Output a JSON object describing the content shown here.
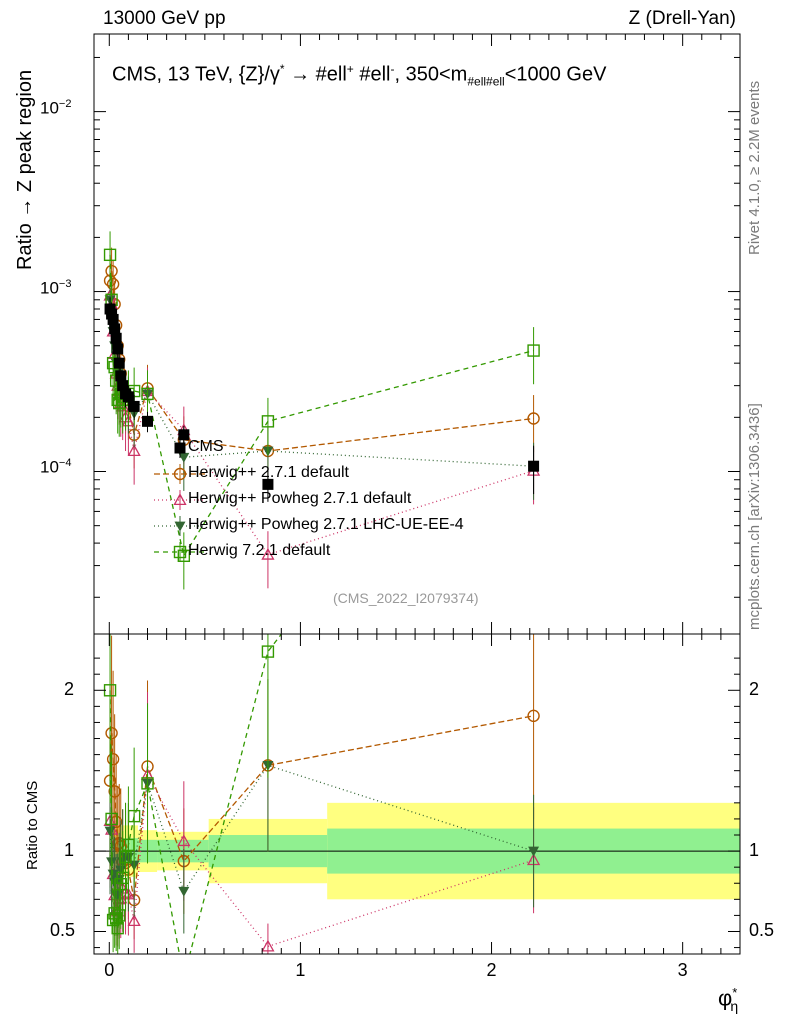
{
  "header": {
    "energy": "13000 GeV pp",
    "process": "Z (Drell-Yan)",
    "title_main": "CMS, 13 TeV, {Z}/γ",
    "title_sup": "*",
    "title_arrow": " →  #ell",
    "title_plus": "+",
    "title_mid": " #ell",
    "title_minus": "-",
    "title_mass": ", 350<m",
    "title_mass_sub": "#ell#ell",
    "title_tail": "<1000 GeV"
  },
  "side": {
    "rivet": "Rivet 4.1.0, ≥ 2.2M events",
    "mcplots": "mcplots.cern.ch [arXiv:1306.3436]"
  },
  "watermark": "(CMS_2022_I2079374)",
  "axes": {
    "ylabel_main": "Ratio → Z peak region",
    "ylabel_ratio": "Ratio to CMS",
    "xlabel": "φ",
    "xlabel_sup": "*",
    "xlabel_sub": "η",
    "main_ticks": [
      {
        "value": 0.0001,
        "label": "10",
        "exp": "−4"
      },
      {
        "value": 0.001,
        "label": "10",
        "exp": "−3"
      },
      {
        "value": 0.01,
        "label": "10",
        "exp": "−2"
      }
    ],
    "ratio_ticks": [
      {
        "value": 0.5,
        "label": "0.5"
      },
      {
        "value": 1,
        "label": "1"
      },
      {
        "value": 2,
        "label": "2"
      }
    ],
    "x_ticks": [
      {
        "value": 0,
        "label": "0"
      },
      {
        "value": 1,
        "label": "1"
      },
      {
        "value": 2,
        "label": "2"
      },
      {
        "value": 3,
        "label": "3"
      }
    ]
  },
  "chart_data": {
    "type": "scatter",
    "x_scale": "linear",
    "y_scale": "log",
    "xlim": [
      -0.08,
      3.3
    ],
    "ylim": [
      1.25e-05,
      0.027
    ],
    "ratio_ylim": [
      0.36,
      2.35
    ],
    "x": [
      0.004,
      0.012,
      0.02,
      0.028,
      0.036,
      0.044,
      0.052,
      0.06,
      0.07,
      0.085,
      0.1,
      0.13,
      0.2,
      0.39,
      0.83,
      2.22
    ],
    "bin_edges": [
      0,
      0.008,
      0.016,
      0.024,
      0.032,
      0.04,
      0.048,
      0.056,
      0.064,
      0.077,
      0.093,
      0.112,
      0.15,
      0.25,
      0.52,
      1.14,
      3.3
    ],
    "cms_stat_rel": [
      0.08,
      0.08,
      0.08,
      0.08,
      0.08,
      0.08,
      0.08,
      0.08,
      0.08,
      0.08,
      0.08,
      0.08,
      0.07,
      0.07,
      0.1,
      0.14
    ],
    "cms_tot_rel": [
      0.16,
      0.16,
      0.16,
      0.16,
      0.16,
      0.16,
      0.16,
      0.16,
      0.16,
      0.16,
      0.16,
      0.16,
      0.13,
      0.12,
      0.2,
      0.3
    ],
    "series": [
      {
        "name": "CMS",
        "color": "#000000",
        "marker": "square-filled",
        "dash": "none",
        "values": [
          0.0008,
          0.00075,
          0.0007,
          0.00062,
          0.00055,
          0.00048,
          0.0004,
          0.00034,
          0.0003,
          0.00027,
          0.00026,
          0.00023,
          0.00019,
          0.00016,
          8.48e-05,
          0.000107
        ]
      },
      {
        "name": "Herwig++ 2.7.1 default",
        "color": "#b35900",
        "marker": "circle-open",
        "dash": "6,3",
        "values": [
          0.00115,
          0.0013,
          0.0011,
          0.00085,
          0.00065,
          0.0005,
          0.00042,
          0.00035,
          0.00028,
          0.00025,
          0.00023,
          0.00016,
          0.00029,
          0.00015,
          0.00013,
          0.000197
        ]
      },
      {
        "name": "Herwig++ Powheg 2.7.1 default",
        "color": "#cc3366",
        "marker": "triangle-open",
        "dash": "1,3",
        "values": [
          0.00095,
          0.00085,
          0.0006,
          0.00045,
          0.00035,
          0.0003,
          0.00028,
          0.00024,
          0.00023,
          0.0002,
          0.00019,
          0.00013,
          0.00028,
          0.00017,
          3.45e-05,
          0.000101
        ]
      },
      {
        "name": "Herwig++ Powheg 2.7.1 LHC-UE-EE-4",
        "color": "#336633",
        "marker": "triangle-down-filled",
        "dash": "1,3",
        "values": [
          0.0009,
          0.0007,
          0.0006,
          0.0005,
          0.0004,
          0.00035,
          0.00033,
          0.0003,
          0.00028,
          0.00026,
          0.00025,
          0.00021,
          0.00027,
          0.00012,
          0.00013,
          0.000107
        ]
      },
      {
        "name": "Herwig 7.2.1 default",
        "color": "#339900",
        "marker": "square-open",
        "dash": "5,4",
        "values": [
          0.0016,
          0.0009,
          0.0004,
          0.00038,
          0.00032,
          0.00025,
          0.00024,
          0.00027,
          0.00025,
          0.00026,
          0.00027,
          0.00028,
          0.00027,
          3.4e-05,
          0.00019,
          0.00047
        ]
      }
    ]
  }
}
